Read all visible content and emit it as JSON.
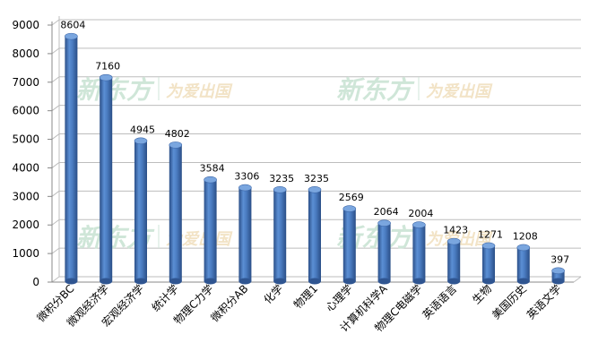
{
  "watermark": {
    "brand": "新东方",
    "slogan": "为爱出国",
    "color": "#cfe6d8"
  },
  "chart_data": {
    "type": "bar",
    "categories": [
      "微积分BC",
      "微观经济学",
      "宏观经济学",
      "统计学",
      "物理C力学",
      "微积分AB",
      "化学",
      "物理1",
      "心理学",
      "计算机科学A",
      "物理C电磁学",
      "英语语言",
      "生物",
      "美国历史",
      "英语文学"
    ],
    "values": [
      8604,
      7160,
      4945,
      4802,
      3584,
      3306,
      3235,
      3235,
      2569,
      2064,
      2004,
      1423,
      1271,
      1208,
      397
    ],
    "data_labels": [
      "8604",
      "7160",
      "4945",
      "4802",
      "3584",
      "3306",
      "3235",
      "3235",
      "2569",
      "2064",
      "2004",
      "1423",
      "1271",
      "1208",
      "397"
    ],
    "ylim": [
      0,
      9000
    ],
    "yticks": [
      "0",
      "1000",
      "2000",
      "3000",
      "4000",
      "5000",
      "6000",
      "7000",
      "8000",
      "9000"
    ],
    "grid": true,
    "bar_color": "#4a7bc0",
    "title": "",
    "xlabel": "",
    "ylabel": ""
  }
}
